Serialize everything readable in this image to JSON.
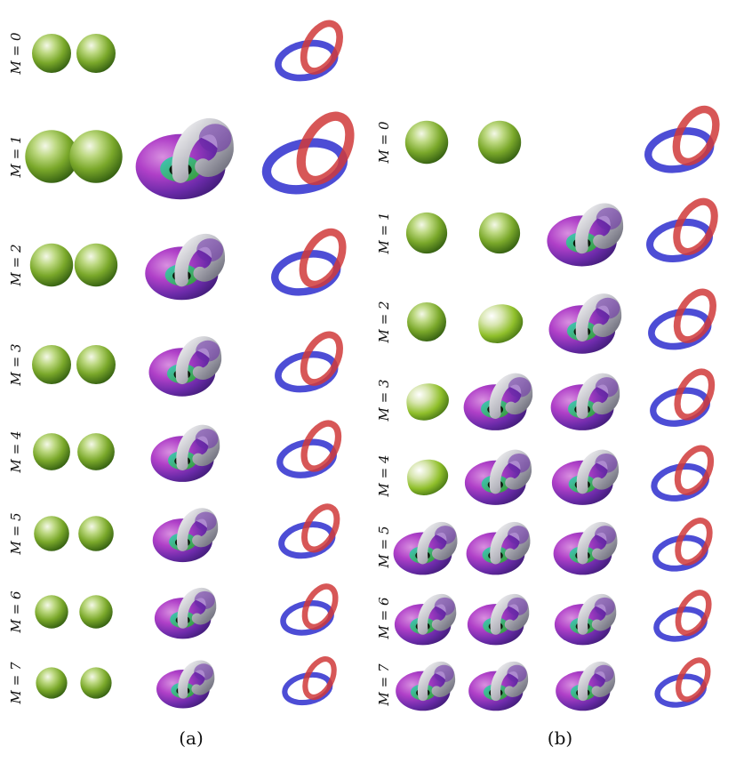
{
  "panels": [
    {
      "caption": "(a)",
      "rows": [
        {
          "label": "M = 0",
          "shapes": [
            "sphere",
            "sphere",
            "",
            "hopf-link"
          ]
        },
        {
          "label": "M = 1",
          "shapes": [
            "sphere",
            "sphere",
            "linked-torus",
            "hopf-link"
          ]
        },
        {
          "label": "M = 2",
          "shapes": [
            "sphere",
            "sphere",
            "linked-torus",
            "hopf-link"
          ]
        },
        {
          "label": "M = 3",
          "shapes": [
            "sphere",
            "sphere",
            "linked-torus",
            "hopf-link"
          ]
        },
        {
          "label": "M = 4",
          "shapes": [
            "sphere",
            "sphere",
            "linked-torus",
            "hopf-link"
          ]
        },
        {
          "label": "M = 5",
          "shapes": [
            "sphere",
            "sphere",
            "linked-torus",
            "hopf-link"
          ]
        },
        {
          "label": "M = 6",
          "shapes": [
            "sphere",
            "sphere",
            "linked-torus",
            "hopf-link"
          ]
        },
        {
          "label": "M = 7",
          "shapes": [
            "sphere",
            "sphere",
            "linked-torus",
            "hopf-link"
          ]
        }
      ]
    },
    {
      "caption": "(b)",
      "rows": [
        {
          "label": "M = 0",
          "shapes": [
            "sphere",
            "sphere",
            "",
            "hopf-link"
          ]
        },
        {
          "label": "M = 1",
          "shapes": [
            "sphere",
            "sphere",
            "linked-torus",
            "hopf-link"
          ]
        },
        {
          "label": "M = 2",
          "shapes": [
            "sphere",
            "bulged-sphere",
            "linked-torus",
            "hopf-link"
          ]
        },
        {
          "label": "M = 3",
          "shapes": [
            "bulged-sphere",
            "linked-torus",
            "linked-torus",
            "hopf-link"
          ]
        },
        {
          "label": "M = 4",
          "shapes": [
            "bulged-sphere",
            "linked-torus",
            "linked-torus",
            "hopf-link"
          ]
        },
        {
          "label": "M = 5",
          "shapes": [
            "linked-torus",
            "linked-torus",
            "linked-torus",
            "hopf-link"
          ]
        },
        {
          "label": "M = 6",
          "shapes": [
            "linked-torus",
            "linked-torus",
            "linked-torus",
            "hopf-link"
          ]
        },
        {
          "label": "M = 7",
          "shapes": [
            "linked-torus",
            "linked-torus",
            "linked-torus",
            "hopf-link"
          ]
        }
      ]
    }
  ],
  "colors": {
    "sphere_light": "#f4f8e8",
    "sphere_mid": "#8fbf2a",
    "sphere_dark": "#2f5a10",
    "torus_magenta": "#b040c8",
    "torus_violet": "#6a2aa8",
    "torus_green": "#3a9a30",
    "torus_cyan": "#40c8c0",
    "tube_grey": "#c8c8cc",
    "ring_blue": "#3a3ad0",
    "ring_red": "#d03a3a"
  }
}
